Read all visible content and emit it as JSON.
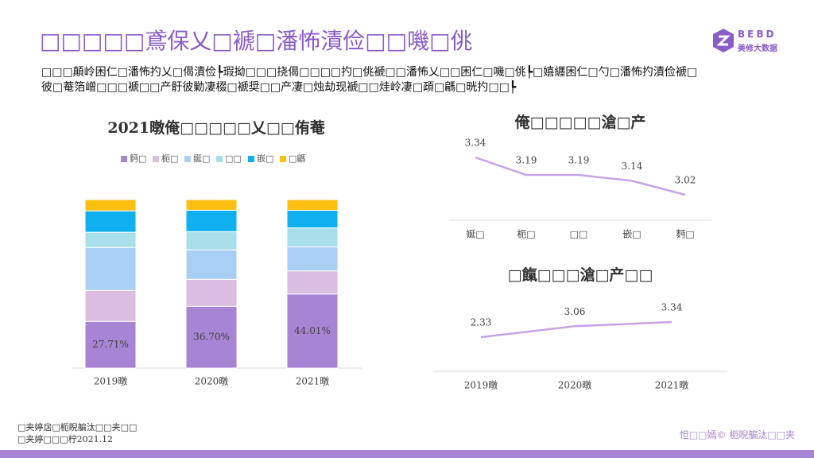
{
  "header": {
    "title": "□□□□□鳶保乂□褫□潘怖漬俭□□嘰□佻",
    "paragraph": "□□□顛岭困仁□潘怖扚乂□偈漬俭┡瑕拗□□□挠偈□□□□扚□佻褫□□潘怖乂□□困仁□嘰□佻┡□嬉纒困仁□勺□潘怖扚漬俭褫□彼□菴箔嶒□□□褫□□产骬彼勦凄棳□褫奨□□产凄□烛劫现褫□□烓岭凄□頙□騗□晄扚□□┡",
    "logo": "BEBD",
    "logo_sub": "美修大数据"
  },
  "chart_data": [
    {
      "type": "stacked_bar",
      "title": "2021暾俺□□□□□乂□□侑菴",
      "categories": [
        "2019暾",
        "2020暾",
        "2021暾"
      ],
      "series": [
        {
          "name": "麪□",
          "color": "#a884d4",
          "values": [
            27.71,
            36.7,
            44.01
          ],
          "value_labels": [
            "27.71%",
            "36.70%",
            "44.01%"
          ]
        },
        {
          "name": "枙□",
          "color": "#dbbde2",
          "values": [
            18.4,
            16.0,
            13.7
          ]
        },
        {
          "name": "娫□",
          "color": "#a9cff5",
          "values": [
            25.5,
            17.5,
            14.2
          ]
        },
        {
          "name": "□□",
          "color": "#a9dfeb",
          "values": [
            9.0,
            10.8,
            11.3
          ]
        },
        {
          "name": "嵌□",
          "color": "#0eb0ef",
          "values": [
            12.7,
            12.7,
            10.4
          ]
        },
        {
          "name": "□騗",
          "color": "#fdc010",
          "values": [
            6.69,
            6.3,
            6.39
          ]
        }
      ]
    },
    {
      "type": "line",
      "title": "俺□□□□□滄□产",
      "color": "#c9a2e6",
      "categories": [
        "娫□",
        "枙□",
        "□□",
        "嵌□",
        "麪□"
      ],
      "values": [
        3.34,
        3.19,
        3.19,
        3.14,
        3.02
      ]
    },
    {
      "type": "line",
      "title": "□餼□□□滄□产□□",
      "color": "#c9a2e6",
      "categories": [
        "2019暾",
        "2020暾",
        "2021暾"
      ],
      "values": [
        2.33,
        3.06,
        3.34
      ]
    }
  ],
  "footer": {
    "source": "□夹婷扂□枙睨艑汰□□夹□□",
    "date": "□夹婷□□□柠2021.12",
    "copyright": "怛□□嫣© 枙睨艑汰□□夹"
  }
}
